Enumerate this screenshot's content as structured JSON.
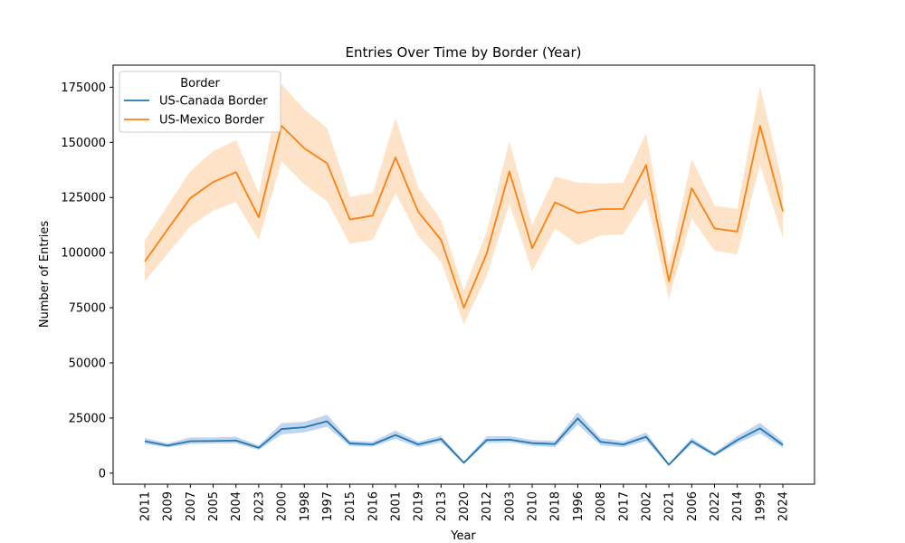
{
  "chart_data": {
    "type": "line",
    "title": "Entries Over Time by Border (Year)",
    "xlabel": "Year",
    "ylabel": "Number of Entries",
    "categories": [
      "2011",
      "2009",
      "2007",
      "2005",
      "2004",
      "2023",
      "2000",
      "1998",
      "1997",
      "2015",
      "2016",
      "2001",
      "2019",
      "2013",
      "2020",
      "2012",
      "2003",
      "2010",
      "2018",
      "1996",
      "2008",
      "2017",
      "2002",
      "2021",
      "2006",
      "2022",
      "2014",
      "1999",
      "2024"
    ],
    "ylim": [
      -5000,
      185000
    ],
    "yticks": [
      0,
      25000,
      50000,
      75000,
      100000,
      125000,
      150000,
      175000
    ],
    "ytick_labels": [
      "0",
      "25000",
      "50000",
      "75000",
      "100000",
      "125000",
      "150000",
      "175000"
    ],
    "legend": {
      "title": "Border",
      "placement": "top-left"
    },
    "grid": false,
    "series": [
      {
        "name": "US-Canada Border",
        "color": "#1f77b4",
        "band_color": "#aec7e8",
        "values": [
          14500,
          12500,
          14500,
          14600,
          14800,
          11500,
          20000,
          20800,
          23500,
          13500,
          13000,
          17300,
          13000,
          15500,
          4700,
          15000,
          15200,
          13600,
          13200,
          24800,
          14200,
          13000,
          16500,
          3800,
          14500,
          8400,
          15000,
          20300,
          12800
        ],
        "lower": [
          13200,
          11600,
          13200,
          13400,
          13500,
          10500,
          17500,
          18500,
          21000,
          12300,
          12000,
          15500,
          11700,
          14000,
          4200,
          13700,
          14000,
          12400,
          11800,
          22000,
          12600,
          11700,
          14700,
          3300,
          13300,
          7600,
          13500,
          18000,
          11500
        ],
        "upper": [
          16000,
          13500,
          16200,
          16200,
          16500,
          12600,
          22700,
          23200,
          26500,
          14700,
          14300,
          19300,
          14300,
          17000,
          5300,
          16700,
          16800,
          15000,
          14600,
          27700,
          16000,
          14400,
          18500,
          4400,
          16000,
          9300,
          16800,
          22800,
          14400
        ]
      },
      {
        "name": "US-Mexico Border",
        "color": "#ff7f0e",
        "band_color": "#ffd9b7",
        "values": [
          96000,
          110500,
          124800,
          132000,
          136500,
          116000,
          157500,
          147300,
          140500,
          115000,
          116800,
          143200,
          118500,
          105800,
          75000,
          99500,
          136800,
          102000,
          122800,
          118000,
          119700,
          119800,
          139700,
          87000,
          129200,
          111000,
          109500,
          157500,
          118700
        ],
        "lower": [
          87000,
          99500,
          112000,
          119000,
          123000,
          105800,
          141500,
          131000,
          123200,
          104000,
          105800,
          127000,
          107500,
          96000,
          67500,
          89500,
          122000,
          91500,
          111000,
          103500,
          107800,
          108200,
          125000,
          78700,
          115500,
          100800,
          99200,
          139800,
          106500
        ],
        "upper": [
          105500,
          121300,
          137000,
          146000,
          151000,
          127000,
          176300,
          165000,
          156500,
          125300,
          127000,
          161000,
          129500,
          114800,
          83000,
          109500,
          150500,
          112500,
          134500,
          131700,
          131300,
          131700,
          154300,
          95000,
          142400,
          121300,
          119800,
          175400,
          131000
        ]
      }
    ]
  }
}
